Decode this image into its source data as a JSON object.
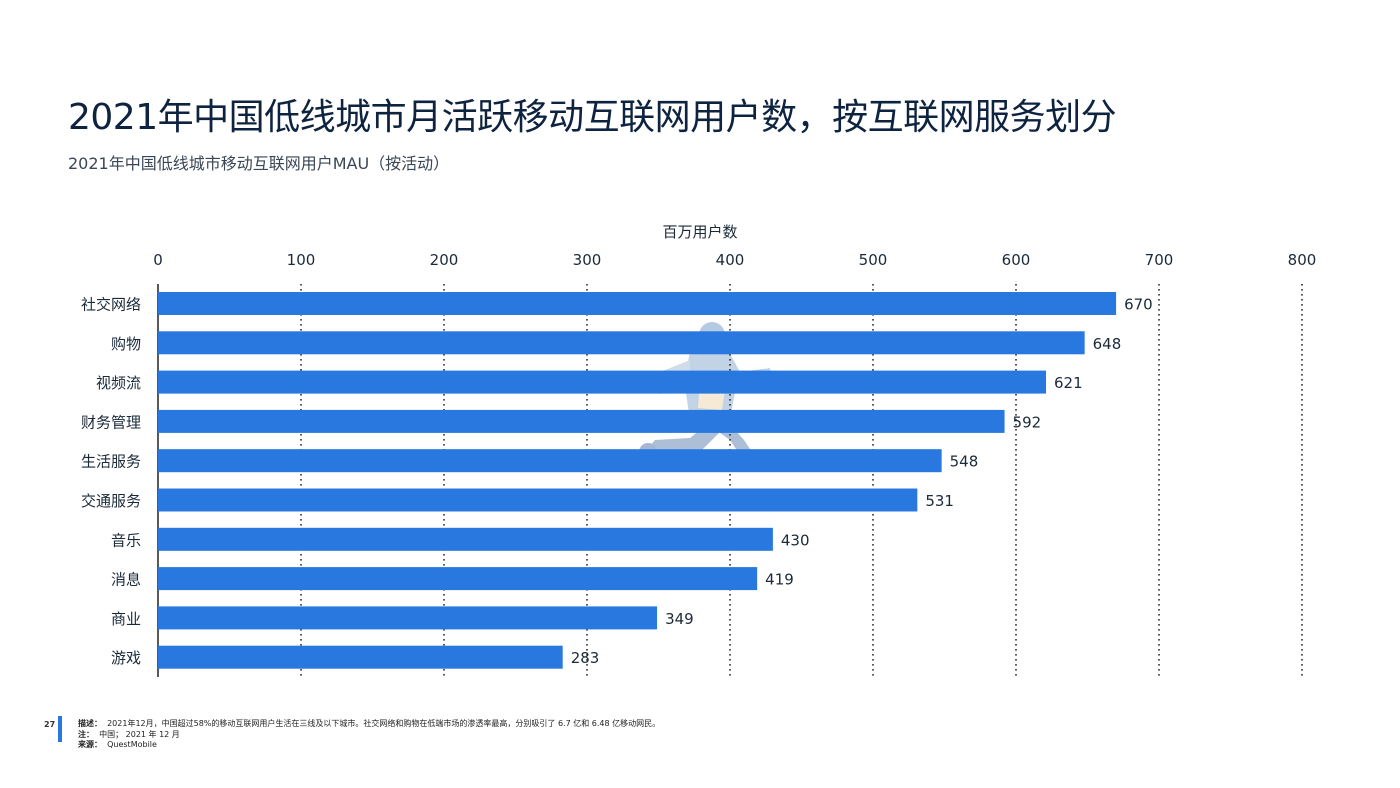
{
  "header": {
    "title": "2021年中国低线城市月活跃移动互联网用户数，按互联网服务划分",
    "subtitle": "2021年中国低线城市移动互联网用户MAU（按活动）"
  },
  "colors": {
    "bar": "#2878e0",
    "grid": "#333333",
    "text": "#1b2a3a"
  },
  "chart_data": {
    "type": "bar",
    "orientation": "horizontal",
    "xlabel": "百万用户数",
    "xlim": [
      0,
      800
    ],
    "xticks": [
      0,
      100,
      200,
      300,
      400,
      500,
      600,
      700,
      800
    ],
    "grid": "dotted vertical",
    "categories": [
      "社交网络",
      "购物",
      "视频流",
      "财务管理",
      "生活服务",
      "交通服务",
      "音乐",
      "消息",
      "商业",
      "游戏"
    ],
    "values": [
      670,
      648,
      621,
      592,
      548,
      531,
      430,
      419,
      349,
      283
    ]
  },
  "footer": {
    "page_number": "27",
    "desc_label": "描述：",
    "desc_text": "2021年12月，中国超过58%的移动互联网用户生活在三线及以下城市。社交网络和购物在低端市场的渗透率最高，分别吸引了 6.7 亿和 6.48 亿移动网民。",
    "note_label": "注：",
    "note_text": "中国；  2021 年 12 月",
    "source_label": "来源：",
    "source_text": "QuestMobile"
  }
}
